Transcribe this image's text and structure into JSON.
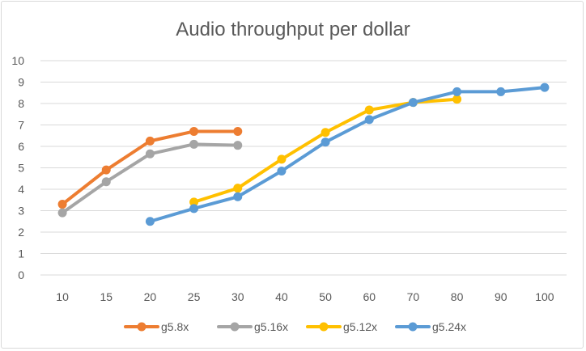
{
  "chart_data": {
    "type": "line",
    "title": "Audio throughput per dollar",
    "xlabel": "",
    "ylabel": "",
    "categories": [
      "10",
      "15",
      "20",
      "25",
      "30",
      "40",
      "50",
      "60",
      "70",
      "80",
      "90",
      "100"
    ],
    "ylim": [
      0,
      10
    ],
    "yticks": [
      "0",
      "1",
      "2",
      "3",
      "4",
      "5",
      "6",
      "7",
      "8",
      "9",
      "10"
    ],
    "grid": true,
    "legend_position": "bottom",
    "series": [
      {
        "name": "g5.8x",
        "color": "#ed7d31",
        "values": [
          3.3,
          4.9,
          6.25,
          6.7,
          6.7,
          null,
          null,
          null,
          null,
          null,
          null,
          null
        ]
      },
      {
        "name": "g5.16x",
        "color": "#a5a5a5",
        "values": [
          2.9,
          4.35,
          5.65,
          6.1,
          6.05,
          null,
          null,
          null,
          null,
          null,
          null,
          null
        ]
      },
      {
        "name": "g5.12x",
        "color": "#ffc000",
        "values": [
          null,
          null,
          null,
          3.4,
          4.05,
          5.4,
          6.65,
          7.7,
          8.05,
          8.2,
          null,
          null
        ]
      },
      {
        "name": "g5.24x",
        "color": "#5b9bd5",
        "values": [
          null,
          null,
          2.5,
          3.1,
          3.65,
          4.85,
          6.2,
          7.25,
          8.05,
          8.55,
          8.55,
          8.75
        ]
      }
    ]
  }
}
